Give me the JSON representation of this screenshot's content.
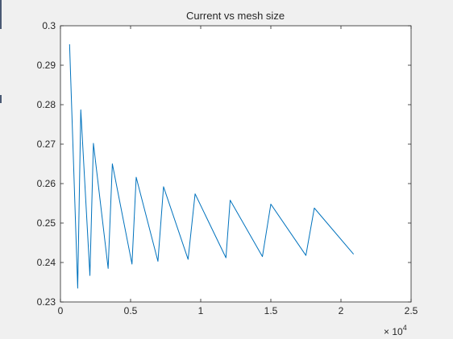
{
  "chart_data": {
    "type": "line",
    "title": "Current vs mesh size",
    "xlabel": "",
    "ylabel": "",
    "xlim": [
      0,
      2.5
    ],
    "ylim": [
      0.23,
      0.3
    ],
    "x_exponent_label": "× 10",
    "x_exponent": "4",
    "x_ticks": [
      "0",
      "0.5",
      "1",
      "1.5",
      "2",
      "2.5"
    ],
    "y_ticks": [
      "0.23",
      "0.24",
      "0.25",
      "0.26",
      "0.27",
      "0.28",
      "0.29",
      "0.3"
    ],
    "grid": false,
    "series": [
      {
        "color": "#0072bd",
        "x": [
          0.065,
          0.123,
          0.145,
          0.21,
          0.235,
          0.34,
          0.37,
          0.51,
          0.54,
          0.695,
          0.735,
          0.91,
          0.96,
          1.18,
          1.21,
          1.44,
          1.5,
          1.75,
          1.81,
          2.09
        ],
        "y": [
          0.2953,
          0.2335,
          0.2787,
          0.2367,
          0.2702,
          0.2385,
          0.265,
          0.2396,
          0.2616,
          0.2403,
          0.2592,
          0.2408,
          0.2574,
          0.2412,
          0.2558,
          0.2415,
          0.2548,
          0.2418,
          0.2538,
          0.2421
        ]
      }
    ]
  }
}
